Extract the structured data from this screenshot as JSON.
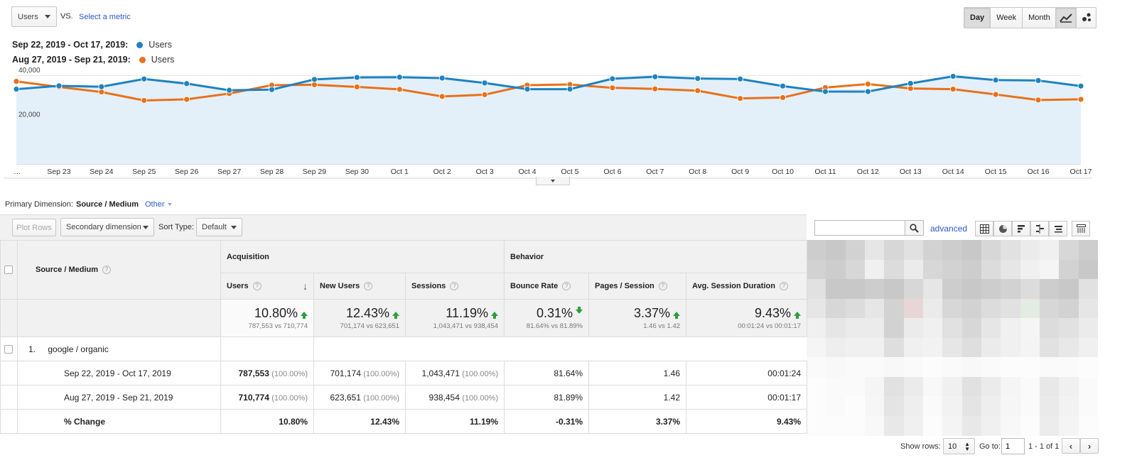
{
  "controls": {
    "metric_dropdown": "Users",
    "vs_label": "VS.",
    "select_metric": "Select a metric",
    "granularity": [
      "Day",
      "Week",
      "Month"
    ],
    "active_granularity": "Day"
  },
  "legend": [
    {
      "range": "Sep 22, 2019 - Oct 17, 2019:",
      "name": "Users",
      "color": "#1f82c0"
    },
    {
      "range": "Aug 27, 2019 - Sep 21, 2019:",
      "name": "Users",
      "color": "#e8711a"
    }
  ],
  "chart_data": {
    "type": "line",
    "x": [
      "…",
      "Sep 23",
      "Sep 24",
      "Sep 25",
      "Sep 26",
      "Sep 27",
      "Sep 28",
      "Sep 29",
      "Sep 30",
      "Oct 1",
      "Oct 2",
      "Oct 3",
      "Oct 4",
      "Oct 5",
      "Oct 6",
      "Oct 7",
      "Oct 8",
      "Oct 9",
      "Oct 10",
      "Oct 11",
      "Oct 12",
      "Oct 13",
      "Oct 14",
      "Oct 15",
      "Oct 16",
      "Oct 17"
    ],
    "y_ticks": [
      "40,000",
      "20,000"
    ],
    "ylim": [
      0,
      42000
    ],
    "series": [
      {
        "color": "#1f82c0",
        "values": [
          33800,
          35300,
          34900,
          38400,
          36300,
          33300,
          33600,
          38200,
          39100,
          39200,
          38800,
          36600,
          33800,
          33800,
          38500,
          39400,
          38600,
          38400,
          35200,
          32700,
          32700,
          36400,
          39600,
          37900,
          37700,
          35200
        ]
      },
      {
        "color": "#e8711a",
        "values": [
          37300,
          34800,
          32500,
          28700,
          29200,
          31800,
          35600,
          35800,
          34800,
          33700,
          30500,
          31300,
          35600,
          35900,
          34400,
          33900,
          33100,
          29600,
          30000,
          34500,
          36100,
          34100,
          33800,
          31400,
          28900,
          29200
        ]
      }
    ]
  },
  "dimension": {
    "label": "Primary Dimension:",
    "active": "Source / Medium",
    "other": "Other"
  },
  "toolbar": {
    "plot_rows": "Plot Rows",
    "secondary": "Secondary dimension",
    "sort_type_label": "Sort Type:",
    "sort_value": "Default",
    "advanced": "advanced",
    "search_value": ""
  },
  "table": {
    "col_source": "Source / Medium",
    "group_acquisition": "Acquisition",
    "group_behavior": "Behavior",
    "headers": [
      "Users",
      "New Users",
      "Sessions",
      "Bounce Rate",
      "Pages / Session",
      "Avg. Session Duration"
    ],
    "summary": [
      {
        "value": "10.80%",
        "sub": "787,553 vs 710,774",
        "dir": "up"
      },
      {
        "value": "12.43%",
        "sub": "701,174 vs 623,651",
        "dir": "up"
      },
      {
        "value": "11.19%",
        "sub": "1,043,471 vs 938,454",
        "dir": "up"
      },
      {
        "value": "0.31%",
        "sub": "81.64% vs 81.89%",
        "dir": "down"
      },
      {
        "value": "3.37%",
        "sub": "1.46 vs 1.42",
        "dir": "up"
      },
      {
        "value": "9.43%",
        "sub": "00:01:24 vs 00:01:17",
        "dir": "up"
      }
    ],
    "row_index": "1.",
    "row_name": "google / organic",
    "sub_rows": [
      {
        "label": "Sep 22, 2019 - Oct 17, 2019",
        "cells": [
          [
            "787,553",
            "(100.00%)"
          ],
          [
            "701,174",
            "(100.00%)"
          ],
          [
            "1,043,471",
            "(100.00%)"
          ],
          [
            "81.64%",
            ""
          ],
          [
            "1.46",
            ""
          ],
          [
            "00:01:24",
            ""
          ]
        ]
      },
      {
        "label": "Aug 27, 2019 - Sep 21, 2019",
        "cells": [
          [
            "710,774",
            "(100.00%)"
          ],
          [
            "623,651",
            "(100.00%)"
          ],
          [
            "938,454",
            "(100.00%)"
          ],
          [
            "81.89%",
            ""
          ],
          [
            "1.42",
            ""
          ],
          [
            "00:01:17",
            ""
          ]
        ]
      },
      {
        "label": "% Change",
        "cells": [
          [
            "10.80%",
            ""
          ],
          [
            "12.43%",
            ""
          ],
          [
            "11.19%",
            ""
          ],
          [
            "-0.31%",
            ""
          ],
          [
            "3.37%",
            ""
          ],
          [
            "9.43%",
            ""
          ]
        ]
      }
    ]
  },
  "pagination": {
    "show_rows_label": "Show rows:",
    "show_rows_value": "10",
    "goto_label": "Go to:",
    "goto_value": "1",
    "range": "1 - 1 of 1"
  }
}
